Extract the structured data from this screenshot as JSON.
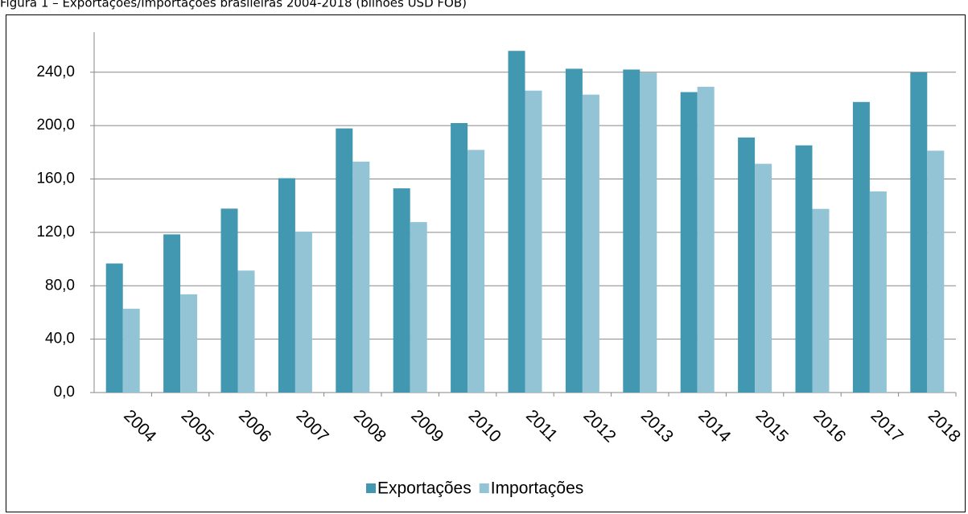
{
  "chart_data": {
    "type": "bar",
    "title": "Figura 1 – Exportações/Importações brasileiras 2004-2018 (bilhões USD FOB)",
    "categories": [
      "2004",
      "2005",
      "2006",
      "2007",
      "2008",
      "2009",
      "2010",
      "2011",
      "2012",
      "2013",
      "2014",
      "2015",
      "2016",
      "2017",
      "2018"
    ],
    "series": [
      {
        "name": "Exportações",
        "color": "#4198b0",
        "values": [
          96.7,
          118.5,
          137.8,
          160.6,
          197.9,
          153.0,
          201.9,
          256.0,
          242.6,
          242.0,
          225.1,
          191.1,
          185.2,
          217.7,
          239.9
        ]
      },
      {
        "name": "Importações",
        "color": "#92c4d5",
        "values": [
          62.8,
          73.6,
          91.4,
          120.6,
          173.0,
          127.7,
          181.8,
          226.2,
          223.2,
          239.7,
          229.1,
          171.4,
          137.6,
          150.7,
          181.2
        ]
      }
    ],
    "ylim": [
      0,
      270
    ],
    "yticks": [
      {
        "value": 0,
        "label": "0,0"
      },
      {
        "value": 40,
        "label": "40,0"
      },
      {
        "value": 80,
        "label": "80,0"
      },
      {
        "value": 120,
        "label": "120,0"
      },
      {
        "value": 160,
        "label": "160,0"
      },
      {
        "value": 200,
        "label": "200,0"
      },
      {
        "value": 240,
        "label": "240,0"
      }
    ],
    "grid": true,
    "legend": "bottom"
  }
}
